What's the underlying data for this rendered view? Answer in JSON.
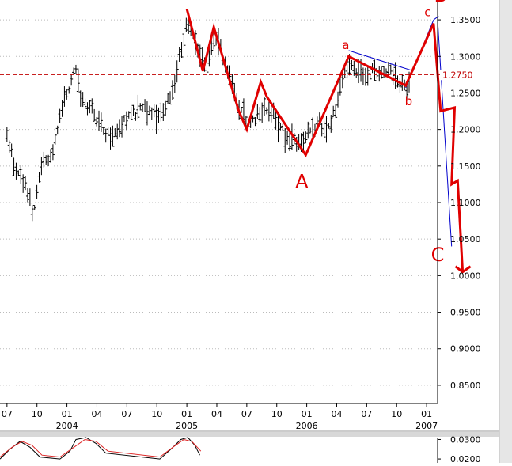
{
  "chart_data": [
    {
      "type": "ohlc",
      "y_axis": {
        "ticks": [
          "1.3500",
          "1.3000",
          "1.2500",
          "1.2000",
          "1.1500",
          "1.1000",
          "1.0500",
          "1.0000",
          "0.9500",
          "0.9000",
          "0.8500"
        ],
        "tick_values": [
          1.35,
          1.3,
          1.25,
          1.2,
          1.15,
          1.1,
          1.05,
          1.0,
          0.95,
          0.9,
          0.85
        ],
        "ylim": [
          0.825,
          1.375
        ],
        "current_price_label": "1.2750",
        "current_price": 1.275
      },
      "x_axis": {
        "month_ticks": [
          {
            "label": "07",
            "t": 0.0
          },
          {
            "label": "10",
            "t": 3.0
          },
          {
            "label": "01",
            "t": 6.0
          },
          {
            "label": "04",
            "t": 9.0
          },
          {
            "label": "07",
            "t": 12.0
          },
          {
            "label": "10",
            "t": 15.0
          },
          {
            "label": "01",
            "t": 18.0
          },
          {
            "label": "04",
            "t": 21.0
          },
          {
            "label": "07",
            "t": 24.0
          },
          {
            "label": "10",
            "t": 27.0
          },
          {
            "label": "01",
            "t": 30.0
          },
          {
            "label": "04",
            "t": 33.0
          },
          {
            "label": "07",
            "t": 36.0
          },
          {
            "label": "10",
            "t": 39.0
          },
          {
            "label": "01",
            "t": 42.0
          }
        ],
        "year_labels": [
          {
            "label": "2004",
            "t": 6.0
          },
          {
            "label": "2005",
            "t": 18.0
          },
          {
            "label": "2006",
            "t": 30.0
          },
          {
            "label": "2007",
            "t": 42.0
          }
        ],
        "t_unit": "months since Jul 2003",
        "xlim": [
          -0.7,
          43.1
        ]
      },
      "price_path": [
        {
          "t": 0.0,
          "p": 1.19
        },
        {
          "t": 1.0,
          "p": 1.14
        },
        {
          "t": 2.0,
          "p": 1.12
        },
        {
          "t": 2.6,
          "p": 1.08
        },
        {
          "t": 3.5,
          "p": 1.15
        },
        {
          "t": 4.5,
          "p": 1.17
        },
        {
          "t": 5.5,
          "p": 1.23
        },
        {
          "t": 6.8,
          "p": 1.28
        },
        {
          "t": 7.5,
          "p": 1.24
        },
        {
          "t": 8.5,
          "p": 1.23
        },
        {
          "t": 9.5,
          "p": 1.2
        },
        {
          "t": 10.5,
          "p": 1.19
        },
        {
          "t": 11.5,
          "p": 1.21
        },
        {
          "t": 12.5,
          "p": 1.22
        },
        {
          "t": 13.5,
          "p": 1.23
        },
        {
          "t": 14.5,
          "p": 1.22
        },
        {
          "t": 15.5,
          "p": 1.22
        },
        {
          "t": 16.5,
          "p": 1.25
        },
        {
          "t": 17.5,
          "p": 1.31
        },
        {
          "t": 18.0,
          "p": 1.35
        },
        {
          "t": 19.0,
          "p": 1.31
        },
        {
          "t": 20.0,
          "p": 1.29
        },
        {
          "t": 21.0,
          "p": 1.33
        },
        {
          "t": 22.0,
          "p": 1.28
        },
        {
          "t": 23.0,
          "p": 1.24
        },
        {
          "t": 24.0,
          "p": 1.21
        },
        {
          "t": 25.0,
          "p": 1.22
        },
        {
          "t": 26.0,
          "p": 1.23
        },
        {
          "t": 27.0,
          "p": 1.21
        },
        {
          "t": 28.0,
          "p": 1.19
        },
        {
          "t": 29.0,
          "p": 1.18
        },
        {
          "t": 30.0,
          "p": 1.19
        },
        {
          "t": 31.0,
          "p": 1.21
        },
        {
          "t": 32.0,
          "p": 1.2
        },
        {
          "t": 33.0,
          "p": 1.23
        },
        {
          "t": 34.0,
          "p": 1.29
        },
        {
          "t": 35.0,
          "p": 1.28
        },
        {
          "t": 36.0,
          "p": 1.27
        },
        {
          "t": 37.0,
          "p": 1.28
        },
        {
          "t": 38.0,
          "p": 1.28
        },
        {
          "t": 39.0,
          "p": 1.27
        },
        {
          "t": 40.0,
          "p": 1.26
        },
        {
          "t": 40.3,
          "p": 1.27
        }
      ],
      "elliott_wave": [
        {
          "t": 18.0,
          "p": 1.365
        },
        {
          "t": 19.6,
          "p": 1.28
        },
        {
          "t": 20.7,
          "p": 1.34
        },
        {
          "t": 22.0,
          "p": 1.28
        },
        {
          "t": 23.2,
          "p": 1.225
        },
        {
          "t": 24.0,
          "p": 1.2
        },
        {
          "t": 25.4,
          "p": 1.265
        },
        {
          "t": 26.0,
          "p": 1.245
        },
        {
          "t": 29.9,
          "p": 1.165
        },
        {
          "t": 34.2,
          "p": 1.3
        },
        {
          "t": 39.9,
          "p": 1.26
        },
        {
          "t": 42.7,
          "p": 1.345
        },
        {
          "t": 43.4,
          "p": 1.225
        },
        {
          "t": 44.8,
          "p": 1.23
        },
        {
          "t": 44.5,
          "p": 1.125
        },
        {
          "t": 45.1,
          "p": 1.13
        },
        {
          "t": 45.6,
          "p": 1.005
        }
      ],
      "channel_lines": [
        {
          "from": {
            "t": 34.2,
            "p": 1.308
          },
          "to": {
            "t": 40.7,
            "p": 1.28
          }
        },
        {
          "from": {
            "t": 34.0,
            "p": 1.25
          },
          "to": {
            "t": 40.7,
            "p": 1.25
          }
        },
        {
          "from": {
            "t": 39.9,
            "p": 1.257
          },
          "to": {
            "t": 42.7,
            "p": 1.35
          }
        },
        {
          "from": {
            "t": 42.7,
            "p": 1.35
          },
          "to": {
            "t": 43.2,
            "p": 1.355
          }
        },
        {
          "from": {
            "t": 43.1,
            "p": 1.35
          },
          "to": {
            "t": 44.5,
            "p": 1.04
          }
        }
      ],
      "annotations": [
        {
          "text": "A",
          "t": 29.5,
          "p": 1.12
        },
        {
          "text": "a",
          "t": 33.9,
          "p": 1.31
        },
        {
          "text": "b",
          "t": 40.2,
          "p": 1.233
        },
        {
          "text": "c",
          "t": 42.1,
          "p": 1.355
        },
        {
          "text": "B",
          "t": 43.4,
          "p": 1.375
        },
        {
          "text": "C",
          "t": 43.1,
          "p": 1.02
        }
      ],
      "colors": {
        "price": "#000000",
        "wave": "#e00000",
        "channel": "#0000cc",
        "reference": "#c00000",
        "grid": "#bbbbbb"
      }
    },
    {
      "type": "line",
      "panel": "oscillator",
      "y_axis": {
        "ticks": [
          "0.0300",
          "0.0200"
        ],
        "tick_values": [
          0.03,
          0.02
        ],
        "ylim": [
          0.018,
          0.031
        ]
      },
      "series": [
        {
          "color": "#000000",
          "x": [
            -0.7,
            0.3,
            1.3,
            2.3,
            3.3,
            5.3,
            6.3,
            6.9,
            7.9,
            8.9,
            9.9,
            15.3,
            16.4,
            17.4,
            18.1,
            18.8,
            19.3
          ],
          "y": [
            0.02,
            0.025,
            0.029,
            0.026,
            0.021,
            0.02,
            0.024,
            0.03,
            0.031,
            0.028,
            0.023,
            0.02,
            0.025,
            0.03,
            0.031,
            0.027,
            0.022
          ]
        },
        {
          "color": "#dd2222",
          "x": [
            -0.7,
            0.5,
            1.5,
            2.5,
            3.5,
            5.3,
            6.7,
            7.8,
            8.9,
            10.1,
            15.3,
            16.6,
            17.7,
            18.5,
            19.4
          ],
          "y": [
            0.021,
            0.026,
            0.029,
            0.027,
            0.022,
            0.021,
            0.026,
            0.03,
            0.029,
            0.024,
            0.021,
            0.026,
            0.03,
            0.029,
            0.024
          ]
        }
      ]
    }
  ]
}
